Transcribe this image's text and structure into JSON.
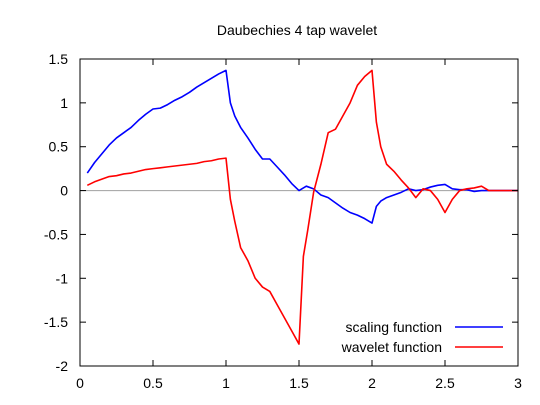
{
  "chart_data": {
    "type": "line",
    "title": "Daubechies 4 tap wavelet",
    "xlabel": "",
    "ylabel": "",
    "xlim": [
      0,
      3
    ],
    "ylim": [
      -2,
      1.5
    ],
    "x_ticks": [
      "0",
      "0.5",
      "1",
      "1.5",
      "2",
      "2.5",
      "3"
    ],
    "y_ticks": [
      "1.5",
      "1",
      "0.5",
      "0",
      "-0.5",
      "-1",
      "-1.5",
      "-2"
    ],
    "grid": false,
    "zero_line": true,
    "legend_position": "bottom-right",
    "series": [
      {
        "name": "scaling function",
        "color": "#0000ff",
        "x": [
          0.05,
          0.1,
          0.15,
          0.2,
          0.25,
          0.3,
          0.35,
          0.4,
          0.45,
          0.5,
          0.55,
          0.6,
          0.65,
          0.7,
          0.75,
          0.8,
          0.85,
          0.9,
          0.95,
          1.0,
          1.03,
          1.06,
          1.1,
          1.15,
          1.2,
          1.25,
          1.3,
          1.35,
          1.4,
          1.45,
          1.5,
          1.55,
          1.6,
          1.65,
          1.7,
          1.75,
          1.8,
          1.85,
          1.9,
          1.95,
          2.0,
          2.03,
          2.06,
          2.1,
          2.15,
          2.2,
          2.25,
          2.3,
          2.35,
          2.4,
          2.45,
          2.5,
          2.55,
          2.6,
          2.65,
          2.7,
          2.75,
          2.8,
          2.85,
          2.9,
          2.95,
          3.0
        ],
        "y": [
          0.2,
          0.32,
          0.42,
          0.52,
          0.6,
          0.66,
          0.72,
          0.8,
          0.87,
          0.93,
          0.94,
          0.98,
          1.03,
          1.07,
          1.12,
          1.18,
          1.23,
          1.28,
          1.33,
          1.37,
          1.0,
          0.85,
          0.72,
          0.6,
          0.47,
          0.36,
          0.36,
          0.27,
          0.18,
          0.08,
          0.0,
          0.05,
          0.02,
          -0.05,
          -0.08,
          -0.14,
          -0.2,
          -0.25,
          -0.28,
          -0.32,
          -0.37,
          -0.18,
          -0.12,
          -0.08,
          -0.05,
          -0.02,
          0.02,
          0.0,
          0.01,
          0.04,
          0.06,
          0.07,
          0.02,
          0.01,
          0.01,
          -0.01,
          0.0,
          0.0,
          0.0,
          0.0,
          0.0,
          0.0
        ]
      },
      {
        "name": "wavelet function",
        "color": "#ff0000",
        "x": [
          0.05,
          0.1,
          0.15,
          0.2,
          0.25,
          0.3,
          0.35,
          0.4,
          0.45,
          0.5,
          0.55,
          0.6,
          0.65,
          0.7,
          0.75,
          0.8,
          0.85,
          0.9,
          0.95,
          1.0,
          1.03,
          1.06,
          1.1,
          1.15,
          1.2,
          1.25,
          1.3,
          1.35,
          1.4,
          1.45,
          1.5,
          1.53,
          1.56,
          1.6,
          1.65,
          1.7,
          1.75,
          1.8,
          1.85,
          1.9,
          1.95,
          2.0,
          2.03,
          2.06,
          2.1,
          2.15,
          2.2,
          2.25,
          2.3,
          2.35,
          2.4,
          2.45,
          2.5,
          2.55,
          2.6,
          2.65,
          2.7,
          2.75,
          2.8,
          2.85,
          2.9,
          2.95,
          3.0
        ],
        "y": [
          0.06,
          0.1,
          0.13,
          0.16,
          0.17,
          0.19,
          0.2,
          0.22,
          0.24,
          0.25,
          0.26,
          0.27,
          0.28,
          0.29,
          0.3,
          0.31,
          0.33,
          0.34,
          0.36,
          0.37,
          -0.1,
          -0.35,
          -0.65,
          -0.8,
          -1.0,
          -1.1,
          -1.15,
          -1.3,
          -1.45,
          -1.6,
          -1.75,
          -0.75,
          -0.45,
          -0.02,
          0.3,
          0.66,
          0.7,
          0.85,
          1.0,
          1.2,
          1.3,
          1.37,
          0.78,
          0.5,
          0.3,
          0.22,
          0.12,
          0.03,
          -0.08,
          0.02,
          0.0,
          -0.1,
          -0.25,
          -0.1,
          0.0,
          0.02,
          0.03,
          0.05,
          0.0,
          0.0,
          0.0,
          0.0,
          0.0
        ]
      }
    ]
  }
}
